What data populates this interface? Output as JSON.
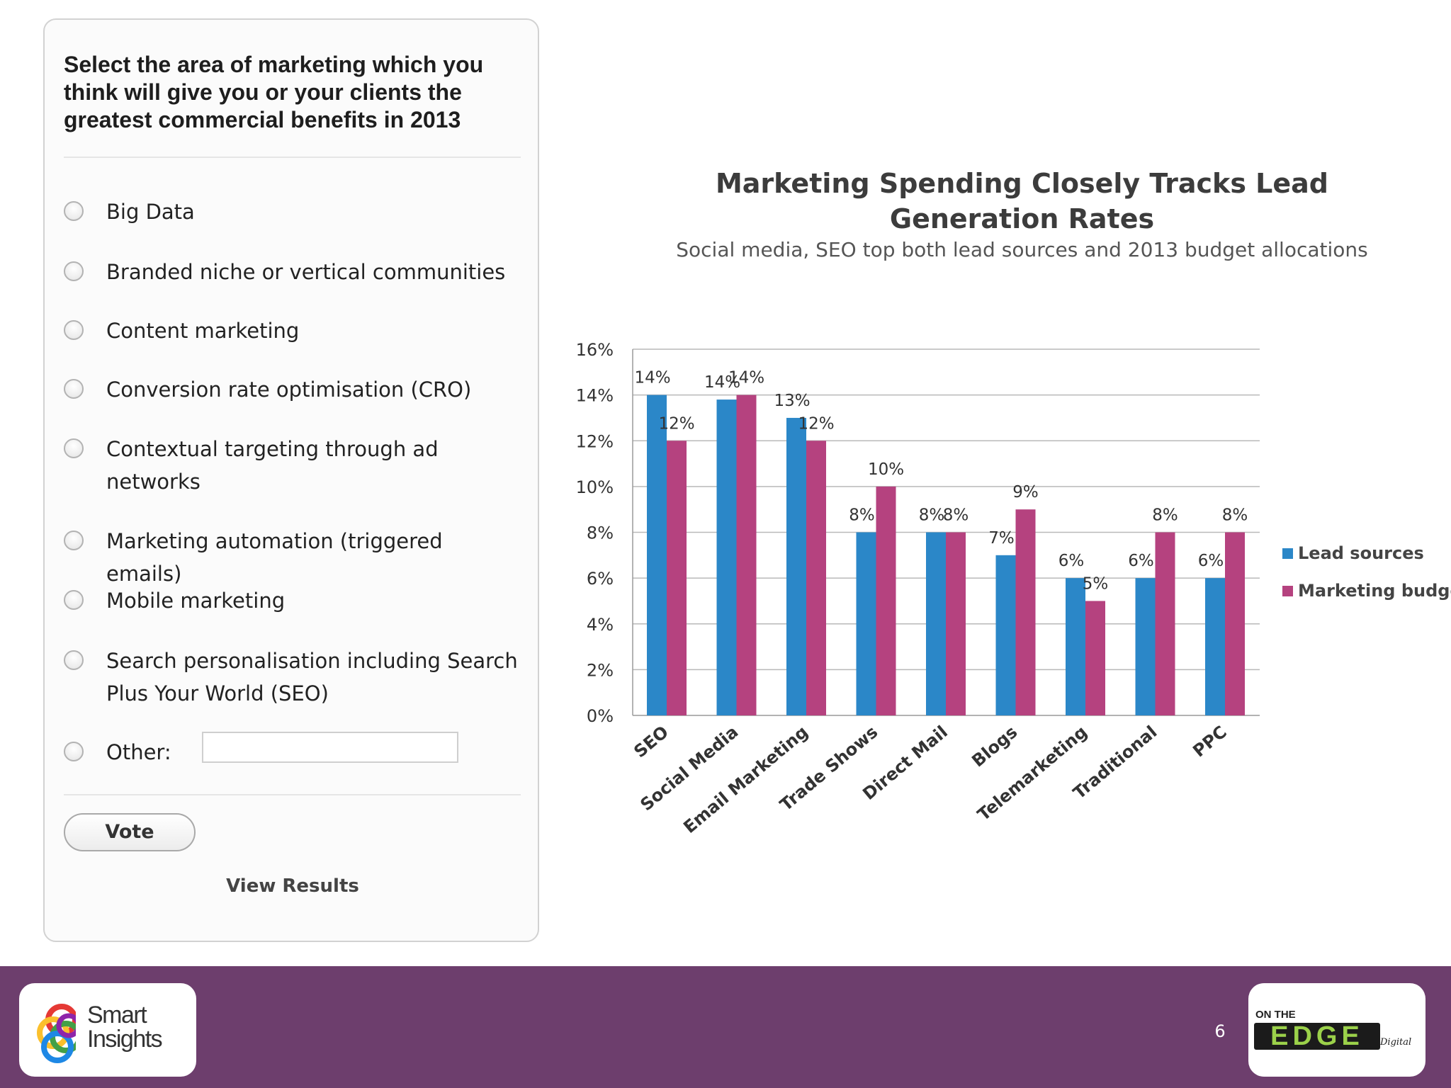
{
  "poll": {
    "question": "Select the area of marketing which you think will give you or your clients the greatest commercial benefits in 2013",
    "options": [
      "Big Data",
      "Branded niche or vertical communities",
      "Content marketing",
      "Conversion rate optimisation (CRO)",
      "Contextual targeting through ad networks",
      "Marketing automation (triggered emails)",
      "Mobile marketing",
      "Search personalisation including Search Plus Your World (SEO)"
    ],
    "other_label": "Other:",
    "other_value": "",
    "vote_label": "Vote",
    "view_results_label": "View Results"
  },
  "chart_data": {
    "type": "bar",
    "title": "Marketing Spending Closely Tracks Lead Generation Rates",
    "subtitle": "Social media, SEO top both lead sources and 2013 budget allocations",
    "categories": [
      "SEO",
      "Social Media",
      "Email Marketing",
      "Trade Shows",
      "Direct Mail",
      "Blogs",
      "Telemarketing",
      "Traditional",
      "PPC"
    ],
    "series": [
      {
        "name": "Lead sources",
        "color": "#2b87c8",
        "values": [
          14,
          13.8,
          13,
          8,
          8,
          7,
          6,
          6,
          6
        ],
        "labels": [
          "14%",
          "14%",
          "13%",
          "8%",
          "8%",
          "7%",
          "6%",
          "6%",
          "6%"
        ]
      },
      {
        "name": "Marketing budget",
        "color": "#b5427f",
        "values": [
          12,
          14,
          12,
          10,
          8,
          9,
          5,
          8,
          8
        ],
        "labels": [
          "12%",
          "14%",
          "12%",
          "10%",
          "8%",
          "9%",
          "5%",
          "8%",
          "8%"
        ]
      }
    ],
    "ylim": [
      0,
      16
    ],
    "yticks": [
      "0%",
      "2%",
      "4%",
      "6%",
      "8%",
      "10%",
      "12%",
      "14%",
      "16%"
    ],
    "grid": true,
    "legend_position": "right"
  },
  "footer": {
    "logo_left_text_1": "Smart",
    "logo_left_text_2": "Insights",
    "page_number": "6",
    "logo_right_top": "ON THE",
    "logo_right_main": "EDGE",
    "logo_right_small": "Digital"
  }
}
